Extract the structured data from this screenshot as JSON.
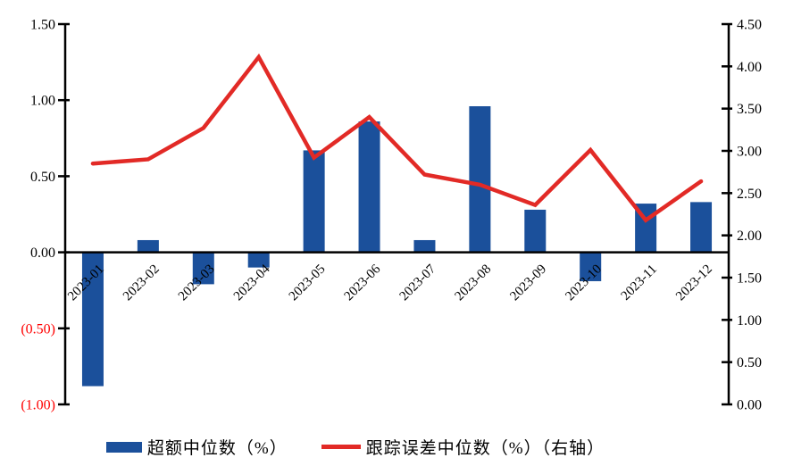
{
  "chart_data": {
    "type": "combo-bar-line",
    "title": "",
    "categories": [
      "2023-01",
      "2023-02",
      "2023-03",
      "2023-04",
      "2023-05",
      "2023-06",
      "2023-07",
      "2023-08",
      "2023-09",
      "2023-10",
      "2023-11",
      "2023-12"
    ],
    "series": [
      {
        "name": "超额中位数（%）",
        "type": "bar",
        "axis": "left",
        "color": "#1B509B",
        "values": [
          -0.88,
          0.08,
          -0.21,
          -0.1,
          0.67,
          0.86,
          0.08,
          0.96,
          0.28,
          -0.19,
          0.32,
          0.33
        ]
      },
      {
        "name": "跟踪误差中位数（%）（右轴）",
        "type": "line",
        "axis": "right",
        "color": "#E22A26",
        "values": [
          2.85,
          2.9,
          3.27,
          4.11,
          2.92,
          3.4,
          2.72,
          2.6,
          2.36,
          3.01,
          2.18,
          2.64
        ]
      }
    ],
    "left_axis": {
      "min": -1.0,
      "max": 1.5,
      "tick_values": [
        1.5,
        1.0,
        0.5,
        0.0,
        -0.5,
        -1.0
      ],
      "tick_labels": [
        "1.50",
        "1.00",
        "0.50",
        "0.00",
        "(0.50)",
        "(1.00)"
      ],
      "positive_label_color": "#000000",
      "negative_label_color": "#FF0000"
    },
    "right_axis": {
      "min": 0.0,
      "max": 4.5,
      "tick_values": [
        4.5,
        4.0,
        3.5,
        3.0,
        2.5,
        2.0,
        1.5,
        1.0,
        0.5,
        0.0
      ],
      "tick_labels": [
        "4.50",
        "4.00",
        "3.50",
        "3.00",
        "2.50",
        "2.00",
        "1.50",
        "1.00",
        "0.50",
        "0.00"
      ],
      "label_color": "#000000"
    },
    "grid": false,
    "legend_position": "bottom",
    "axis_color": "#000000"
  },
  "legend": {
    "items": [
      {
        "label": "超额中位数（%）",
        "swatch": "bar",
        "color": "#1B509B"
      },
      {
        "label": "跟踪误差中位数（%）（右轴）",
        "swatch": "line",
        "color": "#E22A26"
      }
    ]
  }
}
